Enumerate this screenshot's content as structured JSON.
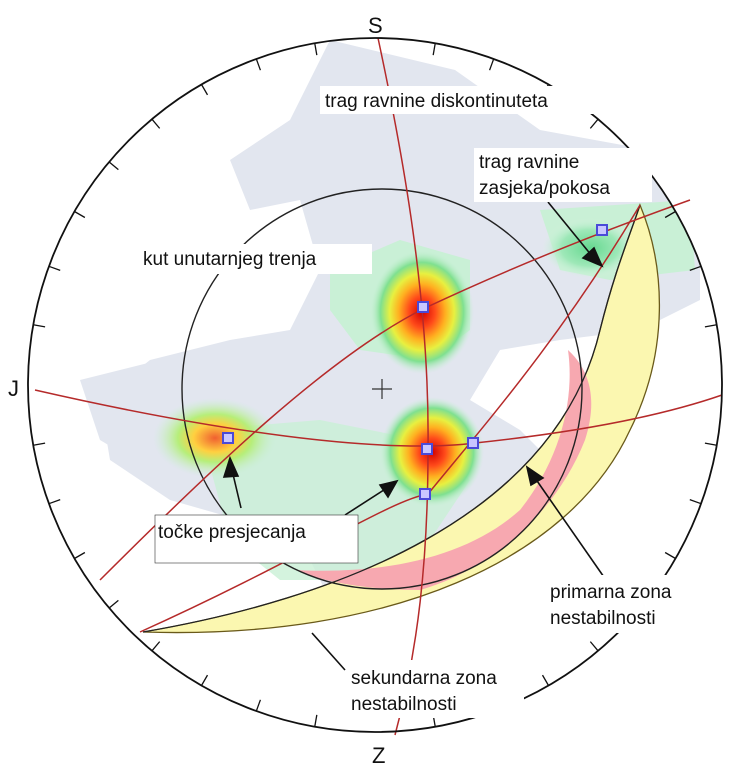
{
  "compass": {
    "north": "S",
    "west": "J",
    "south": "Z"
  },
  "labels": {
    "discontinuity_trace": "trag ravnine diskontinuteta",
    "slope_trace_line1": "trag ravnine",
    "slope_trace_line2": "zasjeka/pokosa",
    "friction_angle": "kut unutarnjeg trenja",
    "intersections": "točke presjecanja",
    "primary_zone_line1": "primarna zona",
    "primary_zone_line2": "nestabilnosti",
    "secondary_zone_line1": "sekundarna zona",
    "secondary_zone_line2": "nestabilnosti"
  },
  "colors": {
    "primary_zone": "#f7a8b0",
    "secondary_zone": "#fbf7b0",
    "great_circle": "#b52a2a",
    "intersection_marker": "#6a6ae0",
    "density_low": "#dfe4f0",
    "density_mid": "#9ee8b8",
    "density_peak": "#e01010"
  },
  "icons": {
    "center": "plus-icon"
  }
}
